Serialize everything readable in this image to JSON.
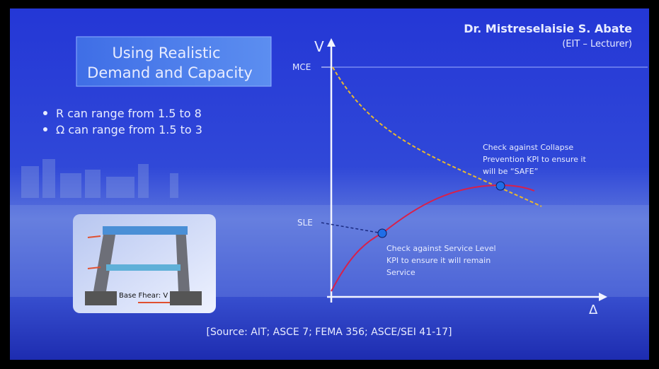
{
  "header": {
    "author": "Dr. Mistreselaisie S. Abate",
    "role": "(EIT – Lecturer)"
  },
  "title": {
    "lines": [
      "Using Realistic",
      "Demand and Capacity"
    ]
  },
  "bullets": [
    "R can range from 1.5 to 8",
    "Ω can range from 1.5 to 3"
  ],
  "figure": {
    "label": "Base Fhear: V"
  },
  "diagram": {
    "y_axis": "V",
    "x_axis": "Δ",
    "upper_level": "MCE",
    "lower_level": "SLE",
    "collapse_note": [
      "Check against Collapse",
      "Prevention KPI to ensure it",
      "will be “SAFE”"
    ],
    "service_note": [
      "Check against Service Level",
      "KPI to ensure it will remain",
      "Service"
    ]
  },
  "source": "[Source: AIT; ASCE 7; FEMA 356; ASCE/SEI 41-17]"
}
